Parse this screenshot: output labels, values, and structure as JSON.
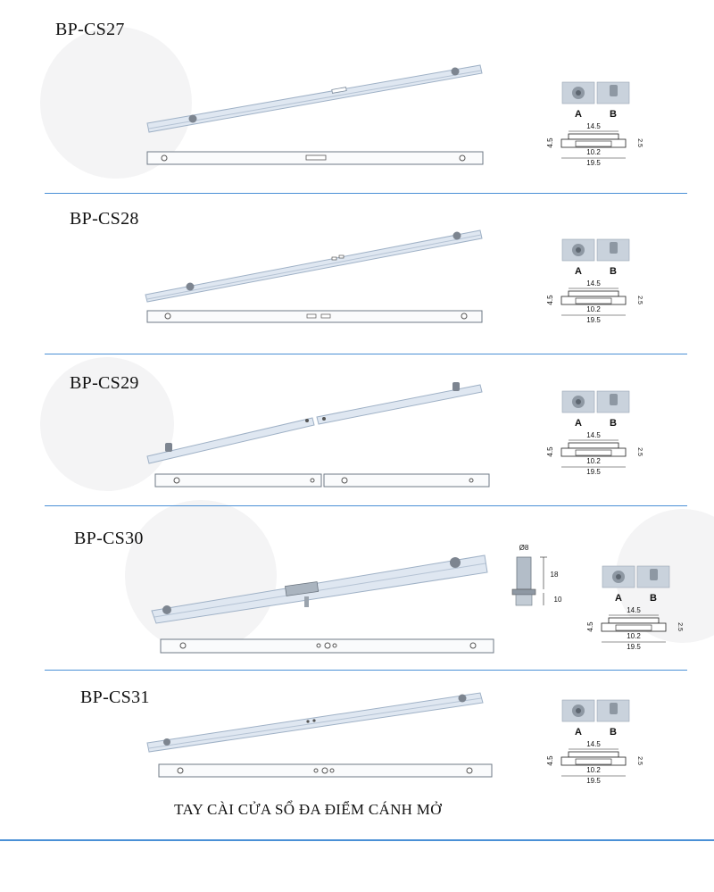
{
  "products": [
    {
      "code": "BP-CS27"
    },
    {
      "code": "BP-CS28"
    },
    {
      "code": "BP-CS29"
    },
    {
      "code": "BP-CS30"
    },
    {
      "code": "BP-CS31"
    }
  ],
  "spec": {
    "label_a": "A",
    "label_b": "B",
    "dim_top": "14.5",
    "dim_inner": "10.2",
    "dim_bottom": "19.5",
    "dim_left": "4.5",
    "dim_right": "2.5"
  },
  "pin": {
    "diameter": "Ø8",
    "height": "18",
    "base": "10"
  },
  "footer": {
    "title": "TAY CÀI CỬA SỔ ĐA ĐIỂM CÁNH MỞ"
  },
  "colors": {
    "divider": "#4a90d6",
    "bar_light": "#dfe7f1",
    "bar_dark": "#9fb1c6"
  }
}
